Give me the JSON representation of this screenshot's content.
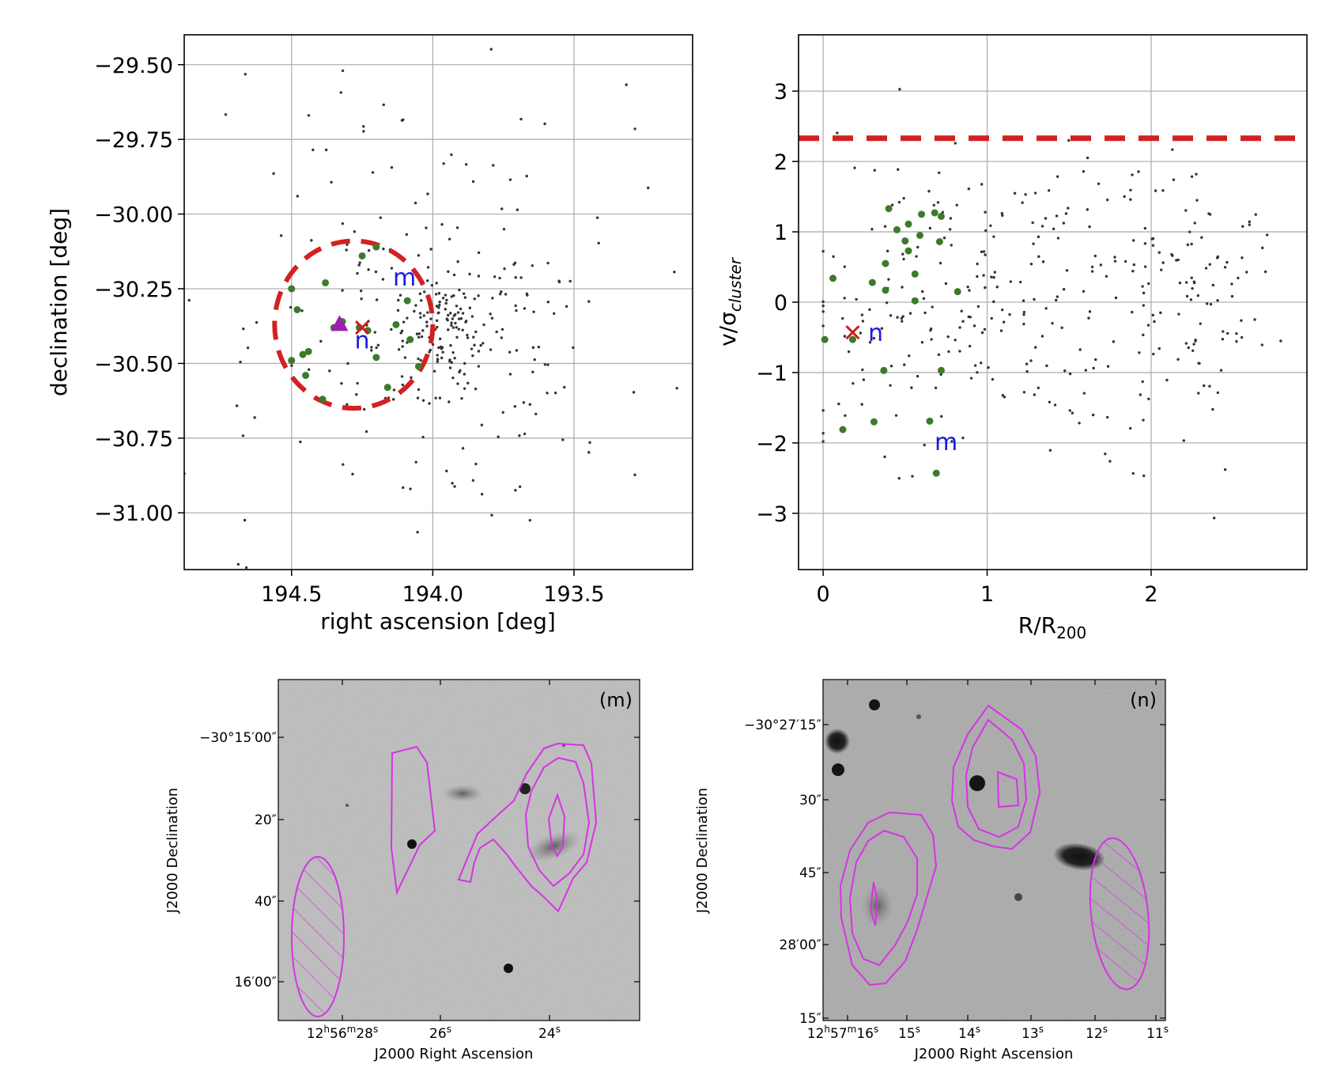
{
  "colors": {
    "background_points": "#333333",
    "members": "#3d7a2a",
    "annotation": "#1a1ae6",
    "marker_x": "#cc1f1f",
    "dashed": "#d42020",
    "triangle": "#9b1fb0",
    "contour": "#d633e6",
    "grid": "#b0b0b0"
  },
  "chart_data": [
    {
      "type": "scatter",
      "id": "sky",
      "xlabel": "right ascension [deg]",
      "ylabel": "declination [deg]",
      "xlim": [
        194.88,
        193.08
      ],
      "ylim": [
        -31.19,
        -29.4
      ],
      "xticks": [
        194.5,
        194.0,
        193.5
      ],
      "xtick_labels": [
        "194.5",
        "194.0",
        "193.5"
      ],
      "yticks": [
        -29.5,
        -29.75,
        -30.0,
        -30.25,
        -30.5,
        -30.75,
        -31.0
      ],
      "ytick_labels": [
        "−29.50",
        "−29.75",
        "−30.00",
        "−30.25",
        "−30.50",
        "−30.75",
        "−31.00"
      ],
      "grid": true,
      "circle": {
        "center": [
          194.28,
          -30.37
        ],
        "radius_deg": 0.28
      },
      "members": [
        [
          194.5,
          -30.25
        ],
        [
          194.48,
          -30.32
        ],
        [
          194.46,
          -30.47
        ],
        [
          194.44,
          -30.46
        ],
        [
          194.5,
          -30.49
        ],
        [
          194.45,
          -30.54
        ],
        [
          194.39,
          -30.62
        ],
        [
          194.35,
          -30.38
        ],
        [
          194.32,
          -30.36
        ],
        [
          194.26,
          -30.38
        ],
        [
          194.23,
          -30.39
        ],
        [
          194.2,
          -30.48
        ],
        [
          194.16,
          -30.58
        ],
        [
          194.13,
          -30.37
        ],
        [
          194.09,
          -30.29
        ],
        [
          194.08,
          -30.42
        ],
        [
          194.05,
          -30.51
        ],
        [
          194.38,
          -30.23
        ],
        [
          194.25,
          -30.14
        ],
        [
          194.2,
          -30.11
        ]
      ],
      "marker_x": [
        194.25,
        -30.38
      ],
      "triangle": [
        194.33,
        -30.37
      ],
      "annotations": [
        {
          "text": "m",
          "x": 194.1,
          "y": -30.24
        },
        {
          "text": "n",
          "x": 194.25,
          "y": -30.45
        }
      ]
    },
    {
      "type": "scatter",
      "id": "phase",
      "xlabel": "R/R₂₀₀",
      "ylabel": "v/σcluster",
      "xlim": [
        -0.15,
        2.95
      ],
      "ylim": [
        -3.8,
        3.8
      ],
      "xticks": [
        0,
        1,
        2
      ],
      "xtick_labels": [
        "0",
        "1",
        "2"
      ],
      "yticks": [
        3,
        2,
        1,
        0,
        -1,
        -2,
        -3
      ],
      "ytick_labels": [
        "3",
        "2",
        "1",
        "0",
        "−1",
        "−2",
        "−3"
      ],
      "grid": true,
      "threshold": 2.33,
      "members": [
        [
          0.4,
          1.33
        ],
        [
          0.6,
          1.25
        ],
        [
          0.68,
          1.27
        ],
        [
          0.72,
          1.22
        ],
        [
          0.52,
          1.11
        ],
        [
          0.45,
          1.03
        ],
        [
          0.59,
          0.95
        ],
        [
          0.5,
          0.87
        ],
        [
          0.71,
          0.86
        ],
        [
          0.52,
          0.73
        ],
        [
          0.38,
          0.55
        ],
        [
          0.56,
          0.4
        ],
        [
          0.3,
          0.28
        ],
        [
          0.06,
          0.34
        ],
        [
          0.38,
          0.17
        ],
        [
          0.56,
          0.02
        ],
        [
          0.82,
          0.15
        ],
        [
          0.01,
          -0.53
        ],
        [
          0.18,
          -0.53
        ],
        [
          0.37,
          -0.97
        ],
        [
          0.72,
          -0.97
        ],
        [
          0.12,
          -1.81
        ],
        [
          0.31,
          -1.7
        ],
        [
          0.65,
          -1.69
        ],
        [
          0.69,
          -2.43
        ]
      ],
      "marker_x": [
        0.18,
        -0.43
      ],
      "annotations": [
        {
          "text": "m",
          "x": 0.75,
          "y": -2.1
        },
        {
          "text": "n",
          "x": 0.32,
          "y": -0.55
        }
      ]
    },
    {
      "type": "image",
      "id": "thumb_m",
      "tag": "(m)",
      "xlabel": "J2000 Right Ascension",
      "ylabel": "J2000 Declination",
      "xtick_labels": [
        {
          "h": "12",
          "hs": "h",
          "m": "56",
          "ms": "m",
          "s": "28",
          "ss": "s"
        },
        {
          "s": "26",
          "ss": "s"
        },
        {
          "s": "24",
          "ss": "s"
        }
      ],
      "ytick_labels": [
        "−30°15′00″",
        "20″",
        "40″",
        "16′00″"
      ]
    },
    {
      "type": "image",
      "id": "thumb_n",
      "tag": "(n)",
      "xlabel": "J2000 Right Ascension",
      "ylabel": "J2000 Declination",
      "xtick_labels": [
        {
          "h": "12",
          "hs": "h",
          "m": "57",
          "ms": "m",
          "s": "16",
          "ss": "s"
        },
        {
          "s": "15",
          "ss": "s"
        },
        {
          "s": "14",
          "ss": "s"
        },
        {
          "s": "13",
          "ss": "s"
        },
        {
          "s": "12",
          "ss": "s"
        },
        {
          "s": "11",
          "ss": "s"
        }
      ],
      "ytick_labels": [
        "−30°27′15″",
        "30″",
        "45″",
        "28′00″",
        "15″"
      ]
    }
  ]
}
